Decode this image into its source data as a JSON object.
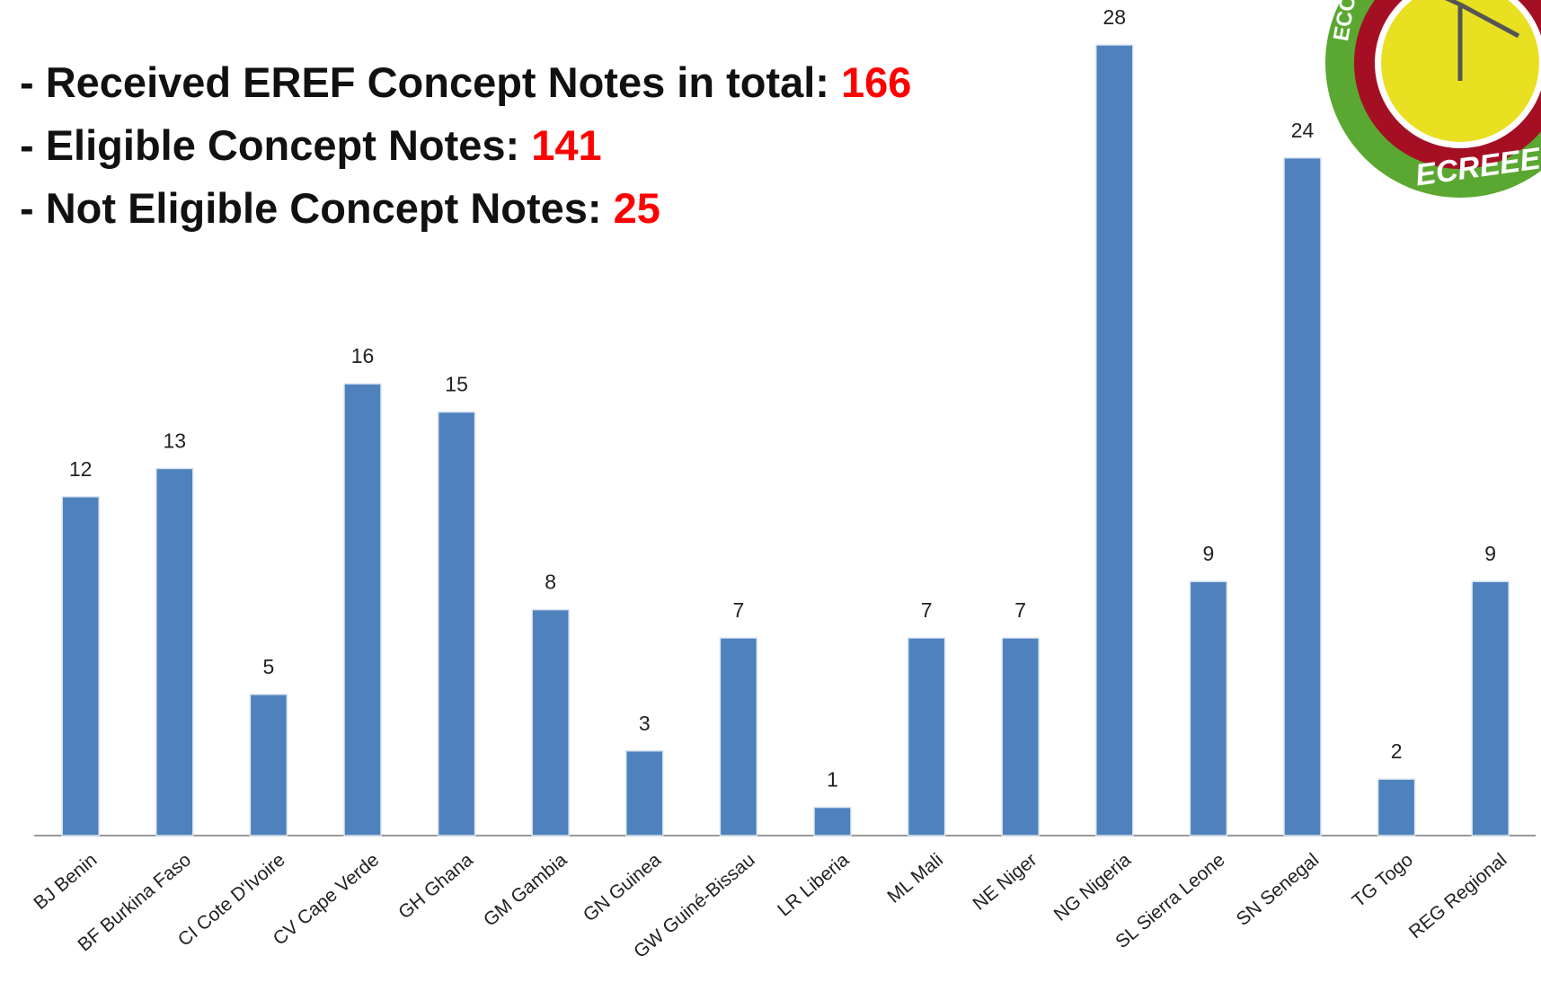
{
  "chart_data": {
    "type": "bar",
    "annotations": [
      {
        "text": "- Received EREF Concept Notes in total:",
        "value": 166
      },
      {
        "text": "- Eligible Concept Notes:",
        "value": 141
      },
      {
        "text": "- Not Eligible Concept Notes:",
        "value": 25
      }
    ],
    "categories": [
      "BJ  Benin",
      "BF  Burkina Faso",
      "CI  Cote D'Ivoire",
      "CV  Cape Verde",
      "GH  Ghana",
      "GM  Gambia",
      "GN  Guinea",
      "GW  Guiné-Bissau",
      "LR  Liberia",
      "ML  Mali",
      "NE  Niger",
      "NG  Nigeria",
      "SL  Sierra Leone",
      "SN  Senegal",
      "TG  Togo",
      "REG Regional"
    ],
    "values": [
      12,
      13,
      5,
      16,
      15,
      8,
      3,
      7,
      1,
      7,
      7,
      28,
      9,
      24,
      2,
      9
    ],
    "color": "#4f81bd",
    "ylim": [
      0,
      28
    ],
    "logo": {
      "partial": "ECO",
      "text": "ECREEE"
    }
  }
}
